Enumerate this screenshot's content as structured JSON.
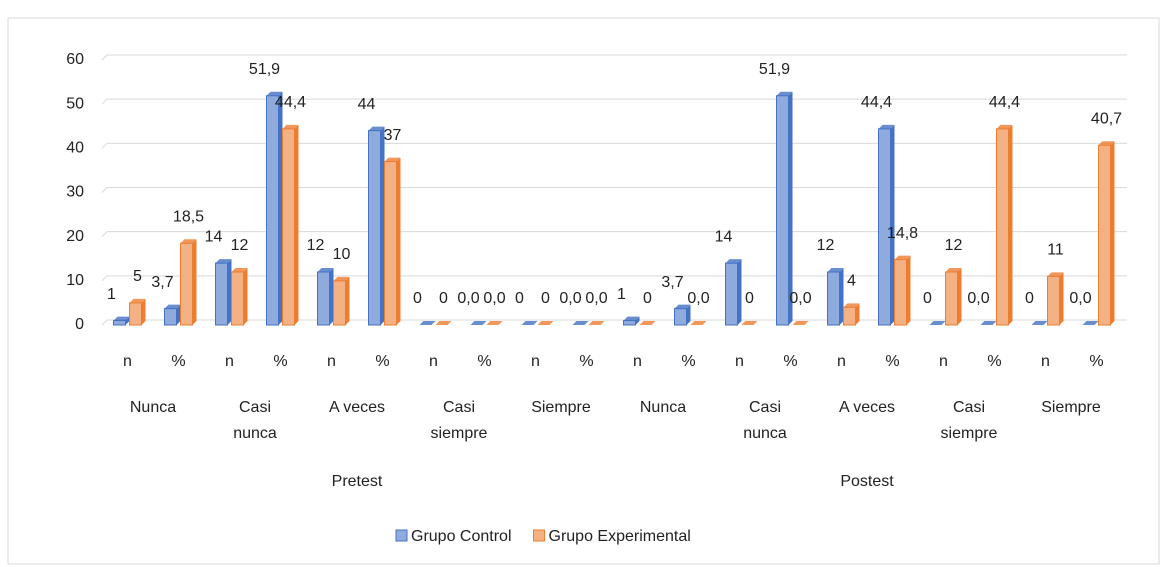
{
  "chart_data": {
    "type": "bar",
    "categories": [
      "n",
      "%",
      "n",
      "%",
      "n",
      "%",
      "n",
      "%",
      "n",
      "%",
      "n",
      "%",
      "n",
      "%",
      "n",
      "%",
      "n",
      "%",
      "n",
      "%"
    ],
    "category_groups": [
      "Nunca",
      "Casi nunca",
      "A veces",
      "Casi siempre",
      "Siempre",
      "Nunca",
      "Casi nunca",
      "A veces",
      "Casi siempre",
      "Siempre"
    ],
    "top_groups": [
      "Pretest",
      "Postest"
    ],
    "series": [
      {
        "name": "Grupo Control",
        "color": "#8faadc",
        "stroke": "#4472c4",
        "values": [
          1,
          3.7,
          14,
          51.9,
          12,
          44,
          0,
          0,
          0,
          0,
          1,
          3.7,
          14,
          51.9,
          12,
          44.4,
          0,
          0,
          0,
          0
        ],
        "value_labels": [
          "1",
          "3,7",
          "14",
          "51,9",
          "12",
          "44",
          "0",
          "0,0",
          "0",
          "0,0",
          "1",
          "3,7",
          "14",
          "51,9",
          "12",
          "44,4",
          "0",
          "0,0",
          "0",
          "0,0"
        ]
      },
      {
        "name": "Grupo Experimental",
        "color": "#f4b183",
        "stroke": "#ed7d31",
        "values": [
          5,
          18.5,
          12,
          44.4,
          10,
          37,
          0,
          0,
          0,
          0,
          0,
          0,
          0,
          0,
          4,
          14.8,
          12,
          44.4,
          11,
          40.7
        ],
        "value_labels": [
          "5",
          "18,5",
          "12",
          "44,4",
          "10",
          "37",
          "0",
          "0,0",
          "0",
          "0,0",
          "0",
          "0,0",
          "0",
          "0,0",
          "4",
          "14,8",
          "12",
          "44,4",
          "11",
          "40,7"
        ]
      }
    ],
    "ylim": [
      0,
      60
    ],
    "yticks": [
      0,
      10,
      20,
      30,
      40,
      50,
      60
    ],
    "grid": true,
    "legend": "bottom"
  }
}
